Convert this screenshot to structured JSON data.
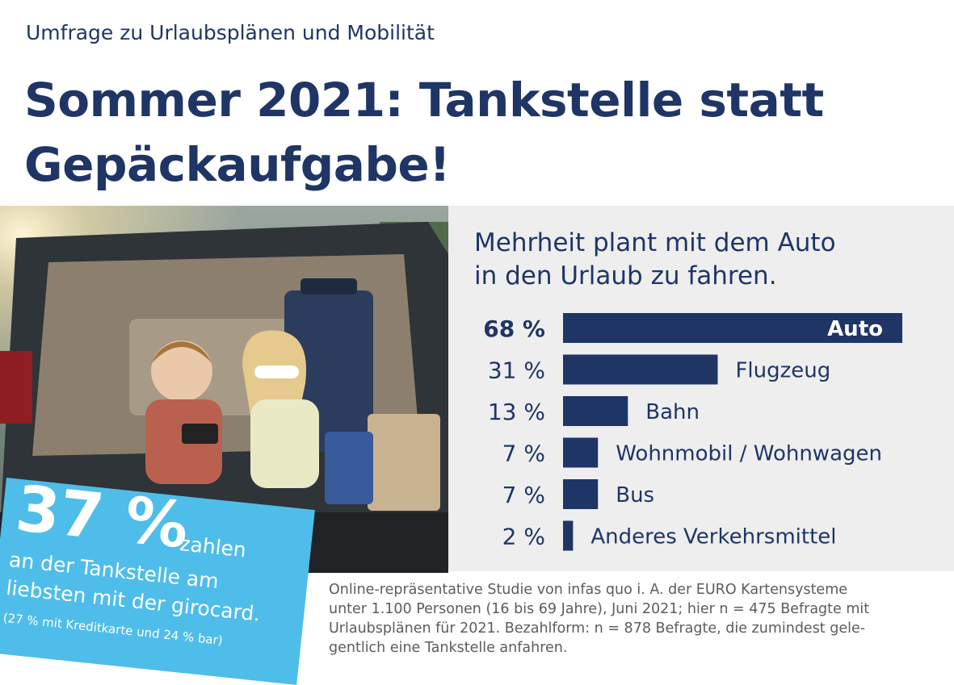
{
  "header": {
    "kicker": "Umfrage zu Urlaubsplänen und Mobilität",
    "headline_line1": "Sommer 2021: Tankstelle statt",
    "headline_line2": "Gepäckaufgabe!"
  },
  "chart_data": {
    "type": "bar",
    "orientation": "horizontal",
    "title_line1": "Mehrheit plant mit dem Auto",
    "title_line2": "in den Urlaub zu fahren.",
    "categories": [
      "Auto",
      "Flugzeug",
      "Bahn",
      "Wohnmobil / Wohnwagen",
      "Bus",
      "Anderes Verkehrsmittel"
    ],
    "values": [
      68,
      31,
      13,
      7,
      7,
      2
    ],
    "value_labels": [
      "68 %",
      "31 %",
      "13 %",
      "7 %",
      "7 %",
      "2 %"
    ],
    "unit": "%",
    "highlight_index": 0,
    "bar_color": "#1f3566",
    "panel_color": "#eeeeee"
  },
  "badge": {
    "percent": "37 %",
    "word": "zahlen",
    "line1": "an der Tankstelle am",
    "line2": "liebsten mit der girocard.",
    "note": "(27 % mit Kreditkarte und 24 % bar)",
    "color": "#4fbde9"
  },
  "source": {
    "line1": "Online-repräsentative Studie von infas quo i. A. der EURO Kartensysteme",
    "line2": "unter 1.100 Personen (16 bis 69 Jahre), Juni 2021; hier n = 475 Befragte mit",
    "line3": "Urlaubsplänen für 2021. Bezahlform: n = 878 Befragte, die zumindest gele-",
    "line4": "gentlich eine Tankstelle anfahren."
  },
  "photo": {
    "icon": "car-trunk-children-photo"
  }
}
